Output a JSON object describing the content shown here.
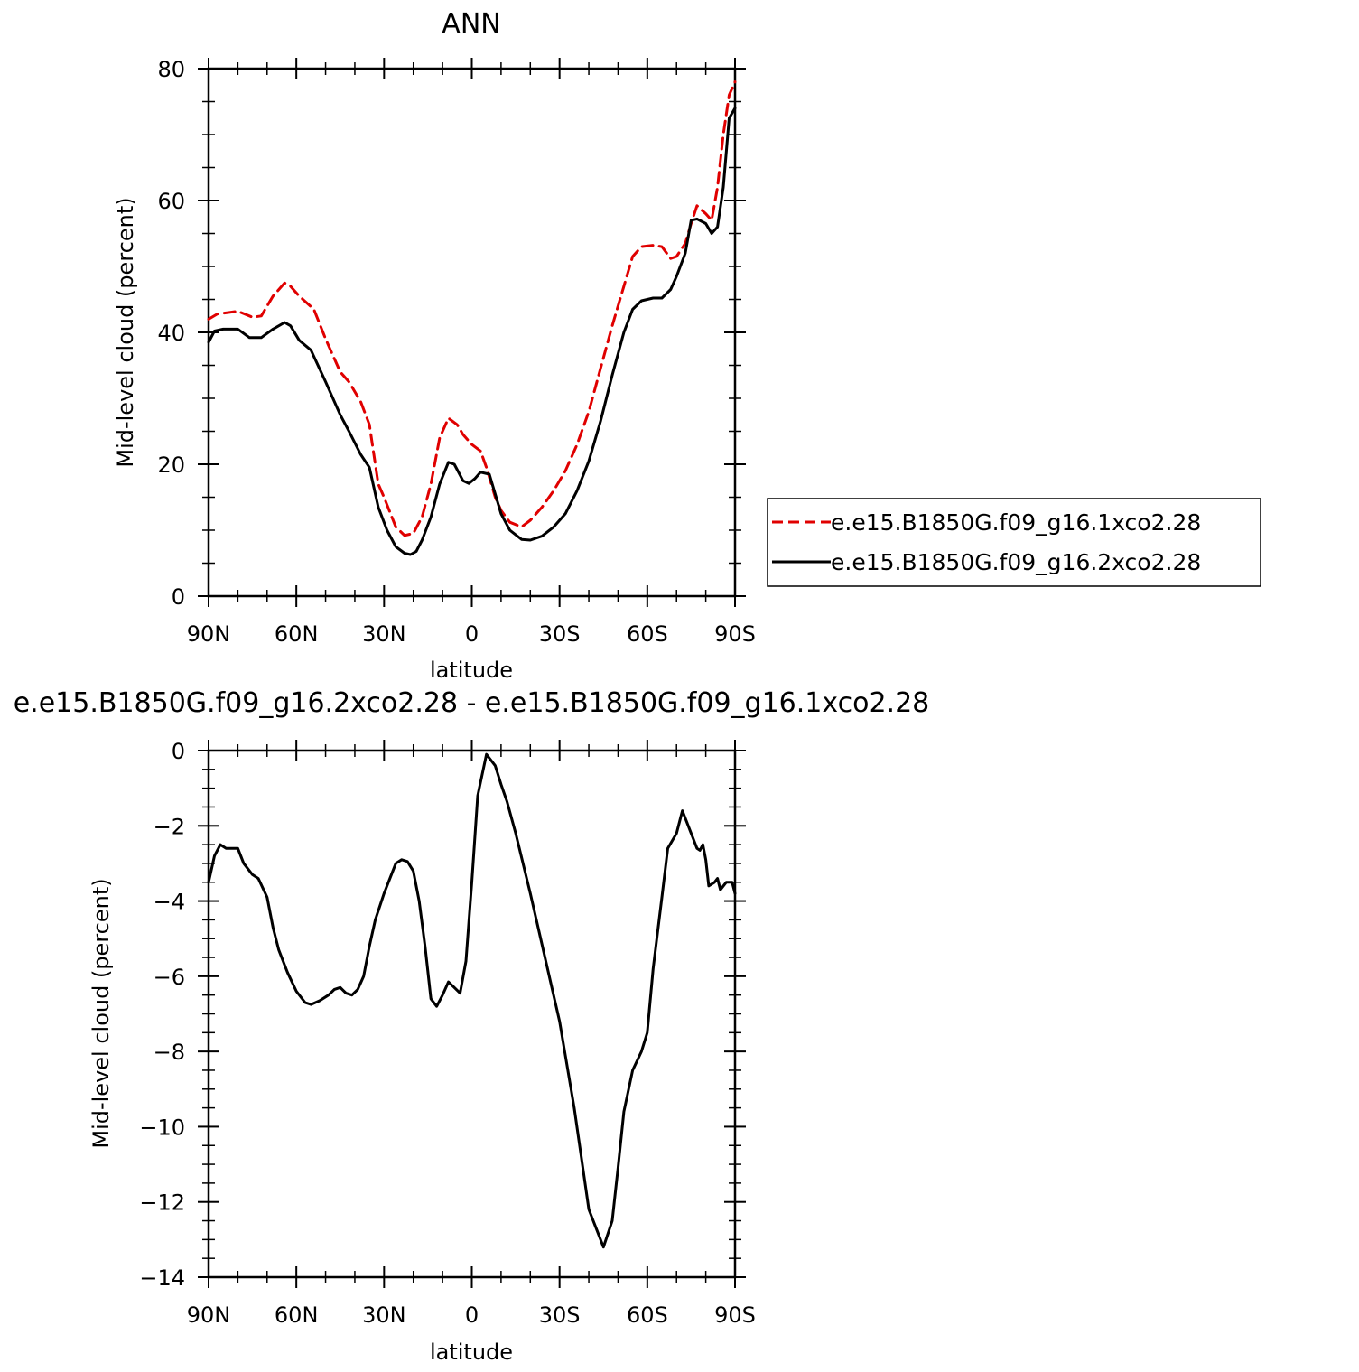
{
  "chart_data": [
    {
      "type": "line",
      "title": "ANN",
      "xlabel": "latitude",
      "ylabel": "Mid-level cloud (percent)",
      "xlim": [
        90,
        -90
      ],
      "ylim": [
        0,
        80
      ],
      "x_tick_values": [
        90,
        60,
        30,
        0,
        -30,
        -60,
        -90
      ],
      "x_tick_labels": [
        "90N",
        "60N",
        "30N",
        "0",
        "30S",
        "60S",
        "90S"
      ],
      "y_tick_values": [
        0,
        20,
        40,
        60,
        80
      ],
      "y_tick_labels": [
        "0",
        "20",
        "40",
        "60",
        "80"
      ],
      "legend_position": "right",
      "series": [
        {
          "name": "e.e15.B1850G.f09_g16.1xco2.28",
          "color": "#e00000",
          "dash": "dashed",
          "x": [
            90,
            87,
            80,
            75,
            72,
            68,
            64,
            62,
            59,
            54,
            50,
            45,
            42,
            38,
            35,
            32,
            30,
            26,
            23,
            20,
            17,
            14,
            11,
            8,
            5,
            3,
            0,
            -3,
            -5,
            -8,
            -10,
            -13,
            -17,
            -20,
            -24,
            -28,
            -32,
            -36,
            -40,
            -44,
            -48,
            -52,
            -55,
            -58,
            -62,
            -65,
            -68,
            -70,
            -73,
            -75,
            -77,
            -80,
            -82,
            -84,
            -86,
            -88,
            -90
          ],
          "y": [
            42,
            42.8,
            43.2,
            42.3,
            42.5,
            45.5,
            47.5,
            47,
            45.5,
            43.5,
            39,
            34,
            32.5,
            29.5,
            26,
            17,
            15,
            10.5,
            9.2,
            9.5,
            12,
            17,
            24,
            27,
            26,
            24.5,
            23,
            22,
            19.5,
            15,
            13,
            11.2,
            10.5,
            11.5,
            13.5,
            16,
            19,
            23,
            28,
            34.5,
            41,
            47,
            51.5,
            53,
            53.2,
            53,
            51.2,
            51.5,
            53.5,
            56.5,
            59.2,
            58,
            57,
            62,
            70,
            76,
            78
          ]
        },
        {
          "name": "e.e15.B1850G.f09_g16.2xco2.28",
          "color": "#000000",
          "dash": "solid",
          "x": [
            90,
            88,
            85,
            80,
            76,
            72,
            68,
            64,
            62,
            59,
            55,
            50,
            45,
            42,
            38,
            35,
            32,
            29,
            26,
            23,
            21,
            19,
            17,
            14,
            11,
            8,
            6,
            3,
            1,
            -1,
            -3,
            -6,
            -8,
            -10,
            -13,
            -17,
            -20,
            -24,
            -28,
            -32,
            -36,
            -40,
            -44,
            -48,
            -52,
            -55,
            -58,
            -62,
            -65,
            -68,
            -70,
            -73,
            -75,
            -77,
            -80,
            -82,
            -84,
            -86,
            -88,
            -90
          ],
          "y": [
            38.5,
            40.2,
            40.5,
            40.5,
            39.2,
            39.2,
            40.5,
            41.5,
            41,
            38.8,
            37.3,
            32.5,
            27.5,
            25,
            21.5,
            19.5,
            13.5,
            10,
            7.5,
            6.5,
            6.3,
            6.8,
            8.5,
            12,
            17,
            20.3,
            20,
            17.5,
            17.1,
            17.8,
            18.8,
            18.5,
            15.5,
            12.5,
            10,
            8.6,
            8.5,
            9.1,
            10.5,
            12.5,
            16,
            20.5,
            26.5,
            33.5,
            40,
            43.5,
            44.8,
            45.2,
            45.2,
            46.5,
            48.5,
            52,
            57,
            57.2,
            56.5,
            55,
            56,
            62,
            72.5,
            74
          ]
        }
      ]
    },
    {
      "type": "line",
      "title": "e.e15.B1850G.f09_g16.2xco2.28 - e.e15.B1850G.f09_g16.1xco2.28",
      "xlabel": "latitude",
      "ylabel": "Mid-level cloud (percent)",
      "xlim": [
        90,
        -90
      ],
      "ylim": [
        -14,
        0
      ],
      "x_tick_values": [
        90,
        60,
        30,
        0,
        -30,
        -60,
        -90
      ],
      "x_tick_labels": [
        "90N",
        "60N",
        "30N",
        "0",
        "30S",
        "60S",
        "90S"
      ],
      "y_tick_values": [
        0,
        -2,
        -4,
        -6,
        -8,
        -10,
        -12,
        -14
      ],
      "y_tick_labels": [
        "0",
        "−2",
        "−4",
        "−6",
        "−8",
        "−10",
        "−12",
        "−14"
      ],
      "series": [
        {
          "name": "",
          "color": "#000000",
          "dash": "solid",
          "x": [
            90,
            88,
            86,
            84,
            80,
            78,
            75,
            73,
            70,
            68,
            66,
            63,
            60,
            57,
            55,
            52,
            49,
            47,
            45,
            43,
            41,
            39,
            37,
            35,
            33,
            30,
            28,
            26,
            24,
            22,
            20,
            18,
            16,
            14,
            12,
            10,
            8,
            6,
            4,
            2,
            0,
            -2,
            -5,
            -8,
            -10,
            -12,
            -15,
            -20,
            -25,
            -30,
            -35,
            -40,
            -45,
            -48,
            -50,
            -52,
            -55,
            -58,
            -60,
            -62,
            -65,
            -67,
            -70,
            -72,
            -75,
            -77,
            -78,
            -79,
            -80,
            -81,
            -83,
            -84,
            -85,
            -87,
            -88,
            -89,
            -90
          ],
          "y": [
            -3.5,
            -2.8,
            -2.5,
            -2.6,
            -2.6,
            -3.0,
            -3.3,
            -3.4,
            -3.9,
            -4.7,
            -5.3,
            -5.9,
            -6.4,
            -6.7,
            -6.75,
            -6.65,
            -6.5,
            -6.35,
            -6.3,
            -6.45,
            -6.5,
            -6.35,
            -6.0,
            -5.2,
            -4.5,
            -3.8,
            -3.4,
            -3.0,
            -2.9,
            -2.95,
            -3.2,
            -4.0,
            -5.2,
            -6.6,
            -6.8,
            -6.5,
            -6.15,
            -6.3,
            -6.45,
            -5.6,
            -3.5,
            -1.2,
            -0.1,
            -0.4,
            -0.9,
            -1.35,
            -2.2,
            -3.8,
            -5.5,
            -7.2,
            -9.5,
            -12.2,
            -13.2,
            -12.5,
            -11.1,
            -9.6,
            -8.5,
            -8.0,
            -7.5,
            -5.8,
            -3.9,
            -2.6,
            -2.2,
            -1.6,
            -2.2,
            -2.6,
            -2.65,
            -2.5,
            -2.9,
            -3.6,
            -3.5,
            -3.4,
            -3.7,
            -3.5,
            -3.5,
            -3.5,
            -3.8
          ]
        }
      ]
    }
  ]
}
